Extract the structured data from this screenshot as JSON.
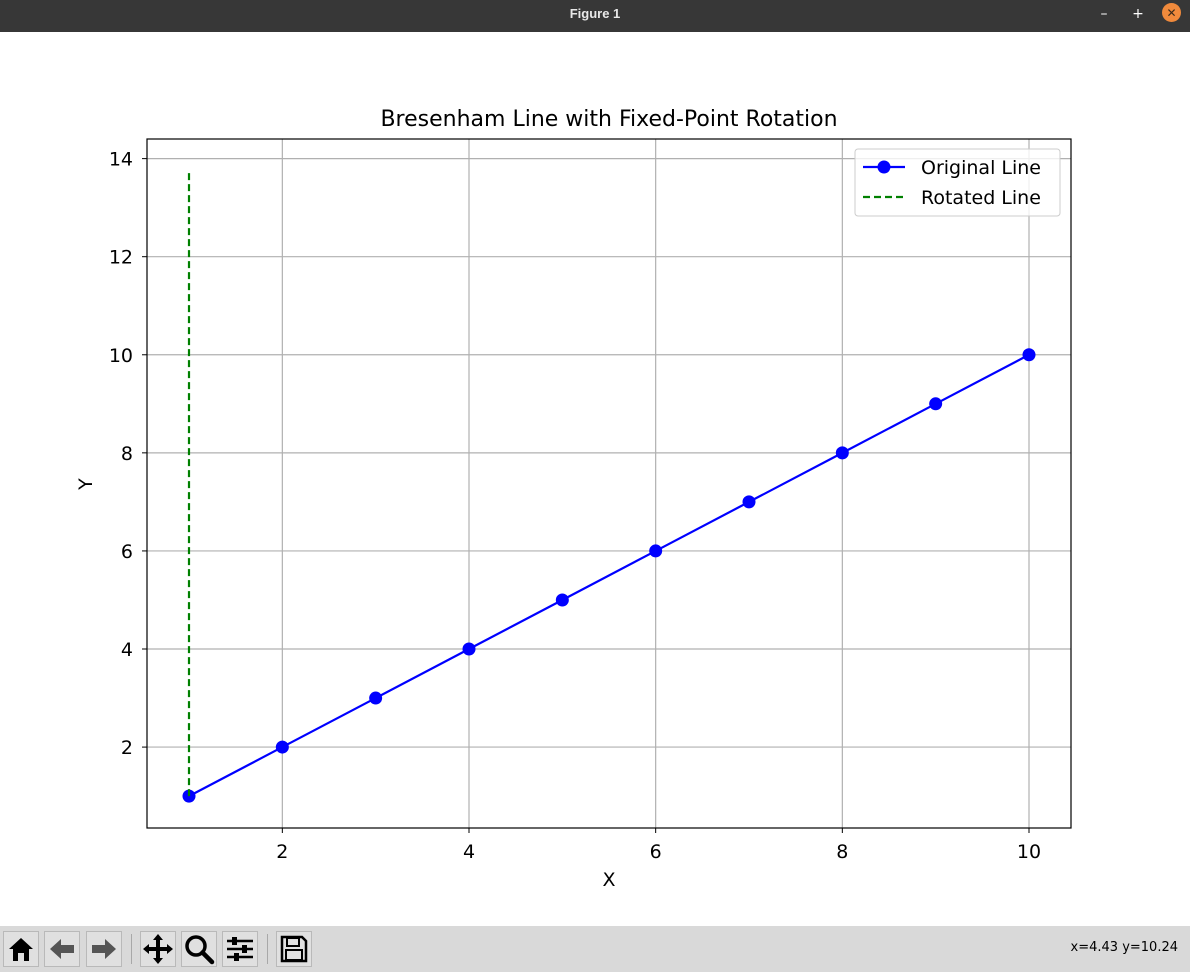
{
  "window": {
    "title": "Figure 1",
    "minimize_glyph": "–",
    "maximize_glyph": "+",
    "close_glyph": "✕"
  },
  "toolbar": {
    "buttons": [
      {
        "name": "home",
        "icon": "home-icon"
      },
      {
        "name": "back",
        "icon": "back-arrow-icon"
      },
      {
        "name": "forward",
        "icon": "forward-arrow-icon"
      },
      {
        "name": "pan",
        "icon": "pan-move-icon"
      },
      {
        "name": "zoom",
        "icon": "zoom-magnifier-icon"
      },
      {
        "name": "configure-subplots",
        "icon": "sliders-icon"
      },
      {
        "name": "save",
        "icon": "save-floppy-icon"
      }
    ],
    "coords_text": "x=4.43 y=10.24"
  },
  "chart_data": {
    "type": "line",
    "title": "Bresenham Line with Fixed-Point Rotation",
    "xlabel": "X",
    "ylabel": "Y",
    "xlim": [
      0.55,
      10.45
    ],
    "ylim": [
      0.35,
      14.4
    ],
    "xticks": [
      2,
      4,
      6,
      8,
      10
    ],
    "yticks": [
      2,
      4,
      6,
      8,
      10,
      12,
      14
    ],
    "grid": true,
    "legend_position": "upper right",
    "series": [
      {
        "name": "Original Line",
        "style": "solid",
        "marker": "circle",
        "color": "#0000ff",
        "x": [
          1,
          2,
          3,
          4,
          5,
          6,
          7,
          8,
          9,
          10
        ],
        "y": [
          1,
          2,
          3,
          4,
          5,
          6,
          7,
          8,
          9,
          10
        ]
      },
      {
        "name": "Rotated Line",
        "style": "dashed",
        "marker": "none",
        "color": "#008000",
        "x": [
          1,
          1
        ],
        "y": [
          1,
          13.73
        ]
      }
    ]
  }
}
